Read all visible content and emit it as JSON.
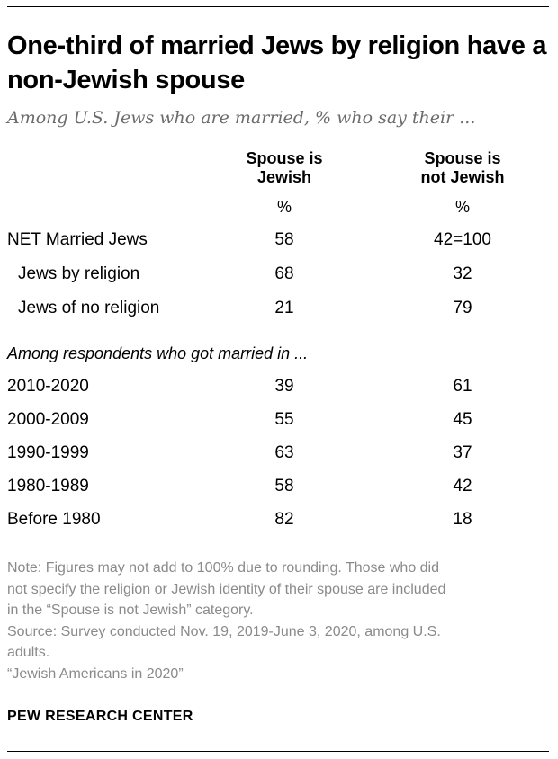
{
  "chart_data": {
    "type": "table",
    "title": "One-third of married Jews by religion have a non-Jewish spouse",
    "subtitle": "Among U.S. Jews who are married, % who say their ...",
    "columns": [
      {
        "line1": "Spouse is",
        "line2": "Jewish",
        "unit": "%"
      },
      {
        "line1": "Spouse is",
        "line2": "not Jewish",
        "unit": "%"
      }
    ],
    "rows": [
      {
        "label": "NET Married Jews",
        "indent": false,
        "values": [
          "58",
          "42=100"
        ]
      },
      {
        "label": "Jews by religion",
        "indent": true,
        "values": [
          "68",
          "32"
        ]
      },
      {
        "label": "Jews of no religion",
        "indent": true,
        "values": [
          "21",
          "79"
        ]
      }
    ],
    "section_label": "Among respondents who got married in ...",
    "section_rows": [
      {
        "label": "2010-2020",
        "values": [
          "39",
          "61"
        ]
      },
      {
        "label": "2000-2009",
        "values": [
          "55",
          "45"
        ]
      },
      {
        "label": "1990-1999",
        "values": [
          "63",
          "37"
        ]
      },
      {
        "label": "1980-1989",
        "values": [
          "58",
          "42"
        ]
      },
      {
        "label": "Before 1980",
        "values": [
          "82",
          "18"
        ]
      }
    ]
  },
  "note_lines": [
    "Note: Figures may not add to 100% due to rounding. Those who did",
    "not specify the religion or Jewish identity of their spouse are included",
    "in the “Spouse is not Jewish” category.",
    "Source: Survey conducted Nov. 19, 2019-June 3, 2020, among U.S.",
    "adults.",
    "“Jewish Americans in 2020”"
  ],
  "brand": "PEW RESEARCH CENTER"
}
